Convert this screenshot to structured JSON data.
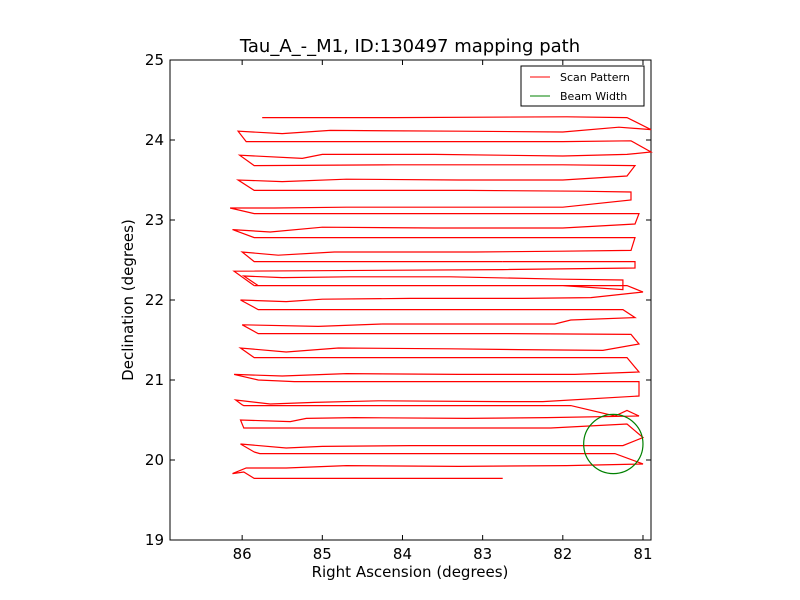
{
  "chart_data": {
    "type": "line",
    "title": "Tau_A_-_M1, ID:130497 mapping path",
    "xlabel": "Right Ascension (degrees)",
    "ylabel": "Declination (degrees)",
    "xlim": [
      86.9,
      80.9
    ],
    "ylim": [
      19,
      25
    ],
    "x_ticks": [
      86,
      85,
      84,
      83,
      82,
      81
    ],
    "y_ticks": [
      19,
      20,
      21,
      22,
      23,
      24,
      25
    ],
    "x_tick_labels": [
      "86",
      "85",
      "84",
      "83",
      "82",
      "81"
    ],
    "y_tick_labels": [
      "19",
      "20",
      "21",
      "22",
      "23",
      "24",
      "25"
    ],
    "grid": false,
    "legend_position": "top-right",
    "series": [
      {
        "name": "Scan Pattern",
        "color": "#ff0000",
        "type": "polyline",
        "points": [
          [
            82.75,
            19.77
          ],
          [
            85.85,
            19.77
          ],
          [
            85.98,
            19.85
          ],
          [
            86.12,
            19.83
          ],
          [
            85.95,
            19.9
          ],
          [
            85.45,
            19.9
          ],
          [
            84.7,
            19.93
          ],
          [
            83.3,
            19.92
          ],
          [
            81.95,
            19.93
          ],
          [
            81.0,
            19.95
          ],
          [
            81.35,
            20.08
          ],
          [
            82.25,
            20.08
          ],
          [
            84.2,
            20.08
          ],
          [
            85.78,
            20.08
          ],
          [
            85.85,
            20.1
          ],
          [
            86.02,
            20.2
          ],
          [
            85.45,
            20.15
          ],
          [
            85.0,
            20.17
          ],
          [
            83.9,
            20.18
          ],
          [
            82.5,
            20.18
          ],
          [
            81.25,
            20.18
          ],
          [
            81.0,
            20.28
          ],
          [
            81.2,
            20.45
          ],
          [
            82.15,
            20.4
          ],
          [
            85.98,
            20.4
          ],
          [
            86.02,
            20.5
          ],
          [
            85.4,
            20.48
          ],
          [
            85.2,
            20.52
          ],
          [
            84.6,
            20.53
          ],
          [
            83.2,
            20.52
          ],
          [
            82.2,
            20.53
          ],
          [
            81.05,
            20.55
          ],
          [
            81.2,
            20.62
          ],
          [
            81.35,
            20.55
          ],
          [
            81.9,
            20.68
          ],
          [
            84.3,
            20.68
          ],
          [
            85.98,
            20.68
          ],
          [
            86.0,
            20.69
          ],
          [
            86.08,
            20.75
          ],
          [
            85.65,
            20.7
          ],
          [
            85.1,
            20.72
          ],
          [
            84.3,
            20.74
          ],
          [
            82.75,
            20.73
          ],
          [
            82.25,
            20.73
          ],
          [
            81.05,
            20.8
          ],
          [
            81.05,
            20.98
          ],
          [
            82.65,
            20.98
          ],
          [
            85.35,
            20.98
          ],
          [
            85.8,
            21.0
          ],
          [
            86.1,
            21.07
          ],
          [
            85.5,
            21.05
          ],
          [
            84.7,
            21.08
          ],
          [
            83.3,
            21.07
          ],
          [
            81.85,
            21.07
          ],
          [
            81.05,
            21.1
          ],
          [
            81.2,
            21.28
          ],
          [
            82.15,
            21.28
          ],
          [
            84.2,
            21.28
          ],
          [
            85.85,
            21.28
          ],
          [
            86.02,
            21.4
          ],
          [
            85.45,
            21.35
          ],
          [
            84.8,
            21.4
          ],
          [
            83.4,
            21.39
          ],
          [
            82.55,
            21.38
          ],
          [
            81.5,
            21.37
          ],
          [
            81.05,
            21.45
          ],
          [
            81.15,
            21.57
          ],
          [
            82.75,
            21.58
          ],
          [
            85.8,
            21.58
          ],
          [
            86.0,
            21.69
          ],
          [
            85.05,
            21.67
          ],
          [
            84.25,
            21.7
          ],
          [
            82.6,
            21.7
          ],
          [
            82.1,
            21.7
          ],
          [
            81.9,
            21.75
          ],
          [
            81.1,
            21.78
          ],
          [
            81.25,
            21.88
          ],
          [
            82.15,
            21.88
          ],
          [
            84.2,
            21.88
          ],
          [
            85.8,
            21.88
          ],
          [
            86.02,
            22.0
          ],
          [
            85.45,
            21.98
          ],
          [
            85.0,
            22.01
          ],
          [
            83.9,
            22.02
          ],
          [
            82.5,
            22.02
          ],
          [
            81.65,
            22.03
          ],
          [
            81.0,
            22.1
          ],
          [
            81.2,
            22.18
          ],
          [
            82.15,
            22.18
          ],
          [
            84.0,
            22.18
          ],
          [
            85.8,
            22.18
          ],
          [
            85.98,
            22.3
          ],
          [
            85.5,
            22.28
          ],
          [
            84.65,
            22.29
          ],
          [
            83.4,
            22.29
          ],
          [
            82.0,
            22.26
          ],
          [
            81.25,
            22.25
          ],
          [
            81.25,
            22.13
          ],
          [
            82.0,
            22.18
          ],
          [
            84.3,
            22.18
          ],
          [
            85.85,
            22.18
          ]
        ],
        "upper_legs": [
          [
            82.75,
            22.48
          ],
          [
            85.85,
            22.48
          ],
          [
            86.0,
            22.6
          ],
          [
            85.55,
            22.56
          ],
          [
            84.85,
            22.6
          ],
          [
            83.1,
            22.6
          ],
          [
            82.0,
            22.61
          ],
          [
            81.15,
            22.62
          ],
          [
            81.1,
            22.78
          ],
          [
            82.3,
            22.78
          ],
          [
            84.25,
            22.78
          ],
          [
            85.85,
            22.78
          ],
          [
            86.12,
            22.88
          ],
          [
            85.65,
            22.85
          ],
          [
            85.0,
            22.91
          ],
          [
            83.6,
            22.9
          ],
          [
            82.0,
            22.9
          ],
          [
            81.1,
            22.95
          ],
          [
            81.05,
            23.08
          ],
          [
            82.25,
            23.08
          ],
          [
            84.2,
            23.08
          ],
          [
            85.85,
            23.08
          ],
          [
            86.15,
            23.15
          ],
          [
            85.6,
            23.15
          ],
          [
            84.7,
            23.16
          ],
          [
            83.3,
            23.16
          ],
          [
            82.0,
            23.16
          ],
          [
            81.15,
            23.25
          ],
          [
            81.15,
            23.35
          ],
          [
            81.8,
            23.36
          ],
          [
            83.2,
            23.37
          ],
          [
            85.85,
            23.37
          ],
          [
            86.05,
            23.5
          ],
          [
            85.5,
            23.48
          ],
          [
            84.7,
            23.51
          ],
          [
            83.3,
            23.5
          ],
          [
            82.0,
            23.5
          ],
          [
            81.2,
            23.55
          ],
          [
            81.1,
            23.68
          ],
          [
            82.0,
            23.69
          ],
          [
            84.1,
            23.69
          ],
          [
            85.85,
            23.68
          ],
          [
            86.03,
            23.81
          ],
          [
            85.25,
            23.77
          ],
          [
            85.0,
            23.82
          ],
          [
            83.6,
            23.82
          ],
          [
            82.0,
            23.8
          ],
          [
            81.2,
            23.82
          ],
          [
            80.9,
            23.85
          ],
          [
            81.15,
            23.99
          ],
          [
            82.0,
            23.98
          ],
          [
            84.2,
            23.98
          ],
          [
            85.95,
            23.98
          ],
          [
            86.05,
            24.11
          ],
          [
            85.5,
            24.08
          ],
          [
            84.9,
            24.12
          ],
          [
            83.3,
            24.11
          ],
          [
            82.0,
            24.1
          ],
          [
            81.3,
            24.16
          ],
          [
            80.9,
            24.13
          ],
          [
            81.2,
            24.28
          ],
          [
            81.95,
            24.29
          ],
          [
            84.1,
            24.28
          ],
          [
            85.75,
            24.28
          ]
        ]
      },
      {
        "name": "Beam Width",
        "color": "#008000",
        "type": "circle",
        "center": [
          81.37,
          20.2
        ],
        "radius_ra": 0.37,
        "radius_dec": 0.37
      }
    ]
  }
}
